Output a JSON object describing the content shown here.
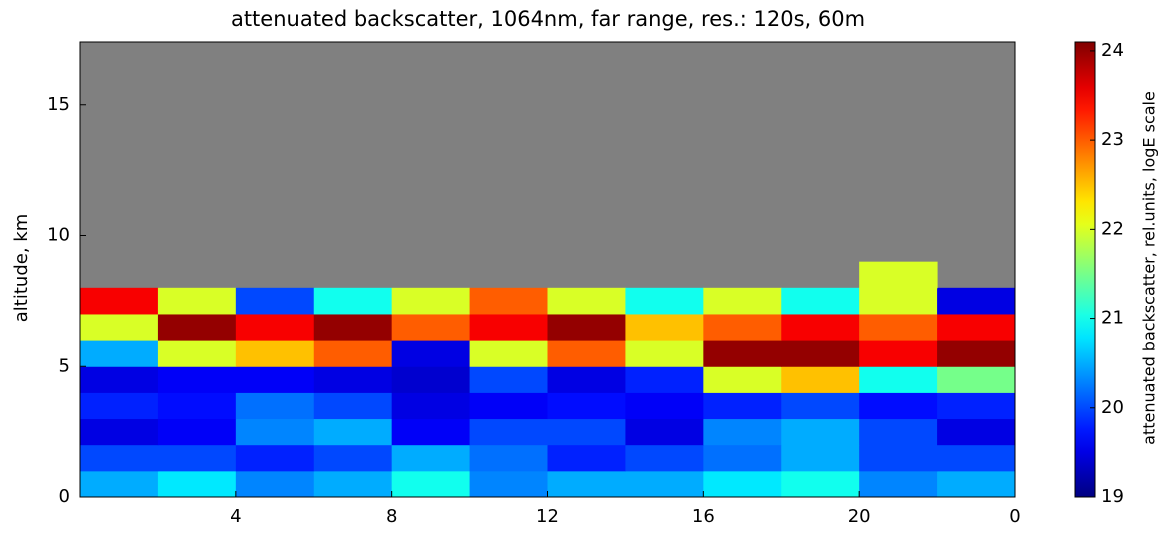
{
  "chart_data": {
    "type": "heatmap",
    "title": "attenuated backscatter, 1064nm, far range, res.: 120s, 60m",
    "ylabel": "altitude, km",
    "colorbar_label": "attenuated backscatter, rel.units, logE scale",
    "colormap": "jet",
    "background": "#808080",
    "xbins": [
      0,
      2,
      4,
      6,
      8,
      10,
      12,
      14,
      16,
      18,
      20,
      22,
      24
    ],
    "ybins": [
      0,
      1,
      2,
      3,
      4,
      5,
      6,
      7,
      8,
      9
    ],
    "values": [
      [
        20.5,
        20.8,
        20.3,
        20.5,
        21,
        20.3,
        20.5,
        20.5,
        20.8,
        21,
        20.3,
        20.5
      ],
      [
        20,
        20,
        19.8,
        20,
        20.5,
        20.2,
        19.8,
        20,
        20.2,
        20.5,
        20,
        20
      ],
      [
        19.5,
        19.6,
        20.3,
        20.5,
        19.6,
        20,
        20,
        19.5,
        20.3,
        20.5,
        20,
        19.5
      ],
      [
        19.8,
        19.7,
        20.2,
        20,
        19.5,
        19.6,
        19.7,
        19.6,
        19.8,
        20,
        19.7,
        19.8
      ],
      [
        19.5,
        19.6,
        19.6,
        19.5,
        19.4,
        20,
        19.5,
        19.8,
        22,
        22.5,
        21,
        21.5
      ],
      [
        20.5,
        22,
        22.5,
        23,
        19.5,
        22,
        23,
        22,
        24,
        24,
        23.5,
        24
      ],
      [
        22,
        24,
        23.5,
        24,
        23,
        23.5,
        24,
        22.5,
        23,
        23.5,
        23,
        23.5
      ],
      [
        23.5,
        22,
        20,
        21,
        22,
        23,
        22,
        21,
        22,
        21,
        22,
        19.5
      ],
      [
        null,
        null,
        null,
        null,
        null,
        null,
        null,
        null,
        null,
        null,
        22,
        null
      ]
    ],
    "xlim": [
      0,
      24
    ],
    "xticks": [
      4,
      8,
      12,
      16,
      20,
      {
        "value": 24,
        "label": "0"
      }
    ],
    "ylim": [
      0,
      17.4
    ],
    "yticks": [
      0,
      5,
      10,
      15
    ],
    "clim": [
      19,
      24.1
    ],
    "cticks": [
      19,
      20,
      21,
      22,
      23,
      24
    ]
  }
}
